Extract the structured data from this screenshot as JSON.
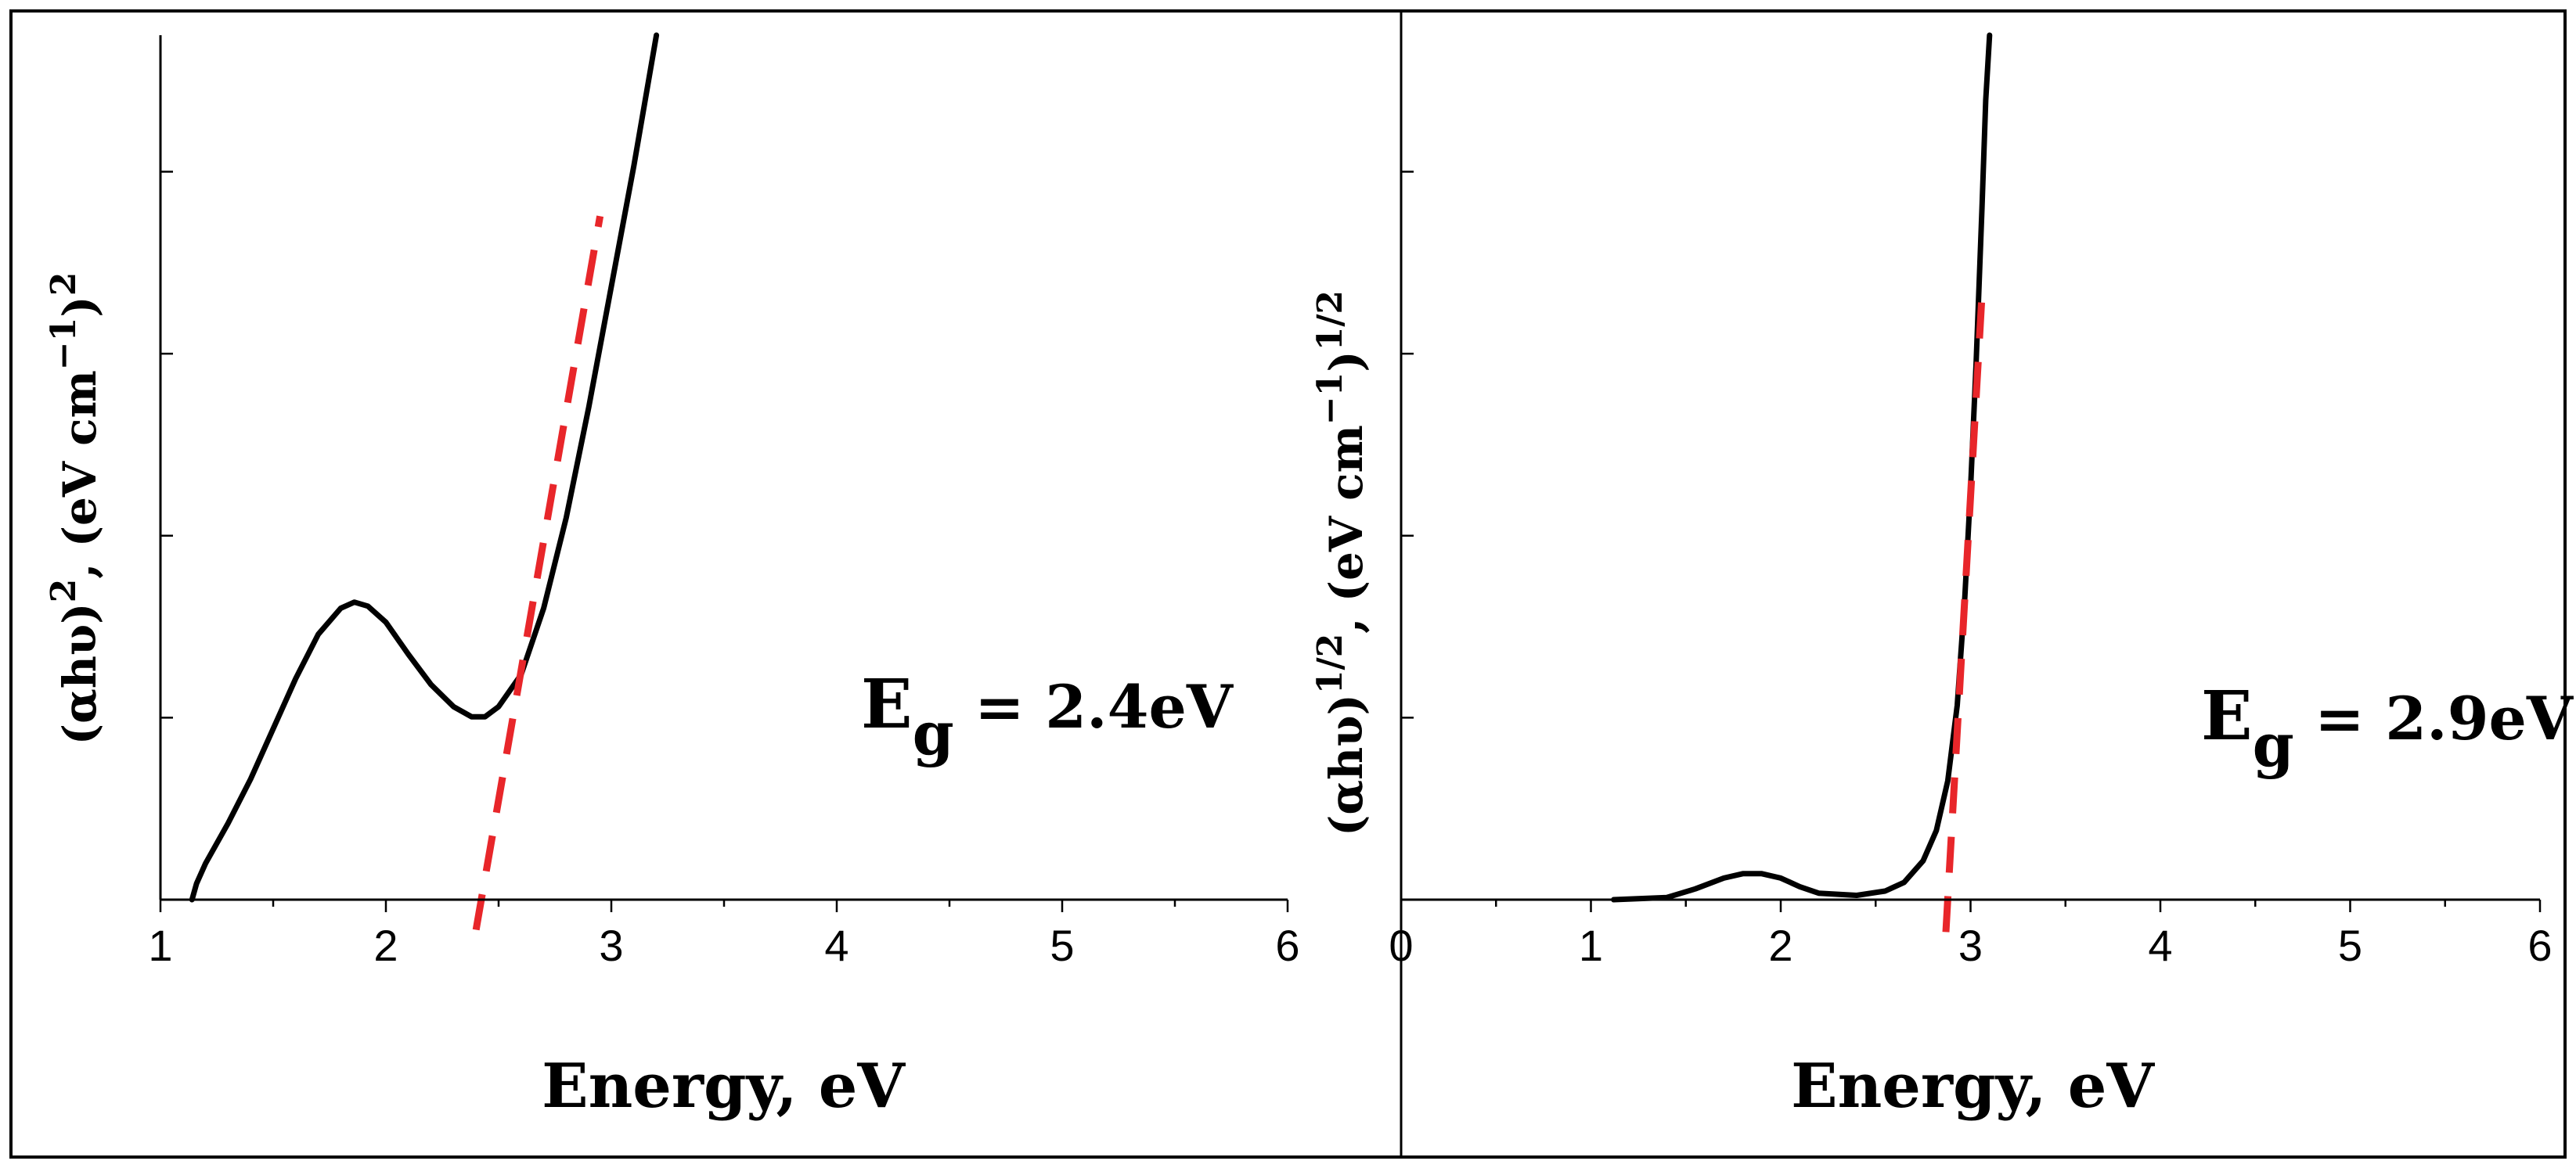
{
  "colors": {
    "curve": "#000000",
    "fit": "#e8262a",
    "frame": "#000000"
  },
  "chart_data": [
    {
      "type": "line",
      "xlabel": "Energy, eV",
      "ylabel": "(αhυ)², (eV cm⁻¹)²",
      "xlim": [
        1,
        6
      ],
      "x_ticks": [
        "1",
        "2",
        "3",
        "4",
        "5",
        "6"
      ],
      "ylim": [
        0,
        4.3
      ],
      "y_tick_labels": "none",
      "annotation": {
        "main": "E",
        "sub": "g",
        "rest": " = 2.4eV"
      },
      "series": [
        {
          "style": "solid",
          "points": [
            [
              1.14,
              0
            ],
            [
              1.16,
              0.08
            ],
            [
              1.2,
              0.18
            ],
            [
              1.3,
              0.38
            ],
            [
              1.4,
              0.6
            ],
            [
              1.5,
              0.85
            ],
            [
              1.6,
              1.1
            ],
            [
              1.7,
              1.32
            ],
            [
              1.8,
              1.45
            ],
            [
              1.86,
              1.48
            ],
            [
              1.92,
              1.46
            ],
            [
              2.0,
              1.38
            ],
            [
              2.1,
              1.22
            ],
            [
              2.2,
              1.07
            ],
            [
              2.3,
              0.96
            ],
            [
              2.38,
              0.91
            ],
            [
              2.44,
              0.91
            ],
            [
              2.5,
              0.96
            ],
            [
              2.6,
              1.12
            ],
            [
              2.7,
              1.45
            ],
            [
              2.8,
              1.9
            ],
            [
              2.9,
              2.45
            ],
            [
              3.0,
              3.05
            ],
            [
              3.1,
              3.65
            ],
            [
              3.2,
              4.3
            ]
          ]
        },
        {
          "style": "dashed",
          "points": [
            [
              2.4,
              -0.15
            ],
            [
              2.95,
              3.4
            ]
          ]
        }
      ]
    },
    {
      "type": "line",
      "xlabel": "Energy, eV",
      "ylabel": "(αhυ)¹ᐟ², (eV cm⁻¹)¹ᐟ²",
      "xlim": [
        0,
        6
      ],
      "x_ticks": [
        "0",
        "1",
        "2",
        "3",
        "4",
        "5",
        "6"
      ],
      "ylim": [
        0,
        4
      ],
      "y_tick_labels": "none",
      "annotation": {
        "main": "E",
        "sub": "g",
        "rest": " = 2.9eV"
      },
      "series": [
        {
          "style": "solid",
          "points": [
            [
              1.12,
              0
            ],
            [
              1.4,
              0.01
            ],
            [
              1.55,
              0.05
            ],
            [
              1.7,
              0.1
            ],
            [
              1.8,
              0.12
            ],
            [
              1.9,
              0.12
            ],
            [
              2.0,
              0.1
            ],
            [
              2.1,
              0.06
            ],
            [
              2.2,
              0.03
            ],
            [
              2.4,
              0.02
            ],
            [
              2.55,
              0.04
            ],
            [
              2.65,
              0.08
            ],
            [
              2.75,
              0.18
            ],
            [
              2.82,
              0.32
            ],
            [
              2.88,
              0.55
            ],
            [
              2.93,
              0.9
            ],
            [
              2.97,
              1.4
            ],
            [
              3.0,
              1.9
            ],
            [
              3.03,
              2.5
            ],
            [
              3.06,
              3.2
            ],
            [
              3.08,
              3.7
            ],
            [
              3.1,
              4.0
            ]
          ]
        },
        {
          "style": "dashed",
          "points": [
            [
              2.87,
              -0.15
            ],
            [
              3.06,
              2.8
            ]
          ]
        }
      ]
    }
  ]
}
